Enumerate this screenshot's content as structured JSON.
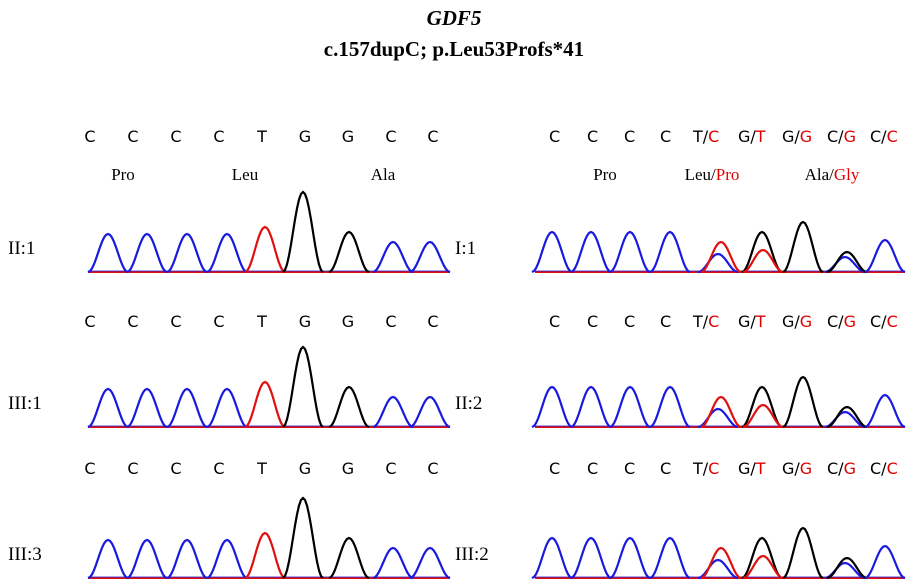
{
  "header": {
    "gene": "GDF5",
    "mutation": "c.157dupC; p.Leu53Profs*41"
  },
  "panels": [
    {
      "label": "II:1",
      "bases": [
        [
          {
            "text": "C",
            "color": "#000"
          }
        ],
        [
          {
            "text": "C",
            "color": "#000"
          }
        ],
        [
          {
            "text": "C",
            "color": "#000"
          }
        ],
        [
          {
            "text": "C",
            "color": "#000"
          }
        ],
        [
          {
            "text": "T",
            "color": "#000"
          }
        ],
        [
          {
            "text": "G",
            "color": "#000"
          }
        ],
        [
          {
            "text": "G",
            "color": "#000"
          }
        ],
        [
          {
            "text": "C",
            "color": "#000"
          }
        ],
        [
          {
            "text": "C",
            "color": "#000"
          }
        ]
      ],
      "amino_acids": [
        [
          {
            "text": "Pro",
            "color": "#000"
          }
        ],
        [
          {
            "text": "Leu",
            "color": "#000"
          }
        ],
        [
          {
            "text": "Ala",
            "color": "#000"
          }
        ]
      ]
    },
    {
      "label": "I:1",
      "bases": [
        [
          {
            "text": "C",
            "color": "#000"
          }
        ],
        [
          {
            "text": "C",
            "color": "#000"
          }
        ],
        [
          {
            "text": "C",
            "color": "#000"
          }
        ],
        [
          {
            "text": "C",
            "color": "#000"
          }
        ],
        [
          {
            "text": "T/",
            "color": "#000"
          },
          {
            "text": "C",
            "color": "#e00000"
          }
        ],
        [
          {
            "text": "G/",
            "color": "#000"
          },
          {
            "text": "T",
            "color": "#e00000"
          }
        ],
        [
          {
            "text": "G/",
            "color": "#000"
          },
          {
            "text": "G",
            "color": "#e00000"
          }
        ],
        [
          {
            "text": "C/",
            "color": "#000"
          },
          {
            "text": "G",
            "color": "#e00000"
          }
        ],
        [
          {
            "text": "C/",
            "color": "#000"
          },
          {
            "text": "C",
            "color": "#e00000"
          }
        ]
      ],
      "amino_acids": [
        [
          {
            "text": "Pro",
            "color": "#000"
          }
        ],
        [
          {
            "text": "Leu/",
            "color": "#000"
          },
          {
            "text": "Pro",
            "color": "#e00000"
          }
        ],
        [
          {
            "text": "Ala/",
            "color": "#000"
          },
          {
            "text": "Gly",
            "color": "#e00000"
          }
        ]
      ]
    },
    {
      "label": "III:1",
      "bases": [
        [
          {
            "text": "C",
            "color": "#000"
          }
        ],
        [
          {
            "text": "C",
            "color": "#000"
          }
        ],
        [
          {
            "text": "C",
            "color": "#000"
          }
        ],
        [
          {
            "text": "C",
            "color": "#000"
          }
        ],
        [
          {
            "text": "T",
            "color": "#000"
          }
        ],
        [
          {
            "text": "G",
            "color": "#000"
          }
        ],
        [
          {
            "text": "G",
            "color": "#000"
          }
        ],
        [
          {
            "text": "C",
            "color": "#000"
          }
        ],
        [
          {
            "text": "C",
            "color": "#000"
          }
        ]
      ]
    },
    {
      "label": "II:2",
      "bases": [
        [
          {
            "text": "C",
            "color": "#000"
          }
        ],
        [
          {
            "text": "C",
            "color": "#000"
          }
        ],
        [
          {
            "text": "C",
            "color": "#000"
          }
        ],
        [
          {
            "text": "C",
            "color": "#000"
          }
        ],
        [
          {
            "text": "T/",
            "color": "#000"
          },
          {
            "text": "C",
            "color": "#e00000"
          }
        ],
        [
          {
            "text": "G/",
            "color": "#000"
          },
          {
            "text": "T",
            "color": "#e00000"
          }
        ],
        [
          {
            "text": "G/",
            "color": "#000"
          },
          {
            "text": "G",
            "color": "#e00000"
          }
        ],
        [
          {
            "text": "C/",
            "color": "#000"
          },
          {
            "text": "G",
            "color": "#e00000"
          }
        ],
        [
          {
            "text": "C/",
            "color": "#000"
          },
          {
            "text": "C",
            "color": "#e00000"
          }
        ]
      ]
    },
    {
      "label": "III:3",
      "bases": [
        [
          {
            "text": "C",
            "color": "#000"
          }
        ],
        [
          {
            "text": "C",
            "color": "#000"
          }
        ],
        [
          {
            "text": "C",
            "color": "#000"
          }
        ],
        [
          {
            "text": "C",
            "color": "#000"
          }
        ],
        [
          {
            "text": "T",
            "color": "#000"
          }
        ],
        [
          {
            "text": "G",
            "color": "#000"
          }
        ],
        [
          {
            "text": "G",
            "color": "#000"
          }
        ],
        [
          {
            "text": "C",
            "color": "#000"
          }
        ],
        [
          {
            "text": "C",
            "color": "#000"
          }
        ]
      ]
    },
    {
      "label": "III:2",
      "bases": [
        [
          {
            "text": "C",
            "color": "#000"
          }
        ],
        [
          {
            "text": "C",
            "color": "#000"
          }
        ],
        [
          {
            "text": "C",
            "color": "#000"
          }
        ],
        [
          {
            "text": "C",
            "color": "#000"
          }
        ],
        [
          {
            "text": "T/",
            "color": "#000"
          },
          {
            "text": "C",
            "color": "#e00000"
          }
        ],
        [
          {
            "text": "G/",
            "color": "#000"
          },
          {
            "text": "T",
            "color": "#e00000"
          }
        ],
        [
          {
            "text": "G/",
            "color": "#000"
          },
          {
            "text": "G",
            "color": "#e00000"
          }
        ],
        [
          {
            "text": "C/",
            "color": "#000"
          },
          {
            "text": "G",
            "color": "#e00000"
          }
        ],
        [
          {
            "text": "C/",
            "color": "#000"
          },
          {
            "text": "C",
            "color": "#e00000"
          }
        ]
      ]
    }
  ]
}
